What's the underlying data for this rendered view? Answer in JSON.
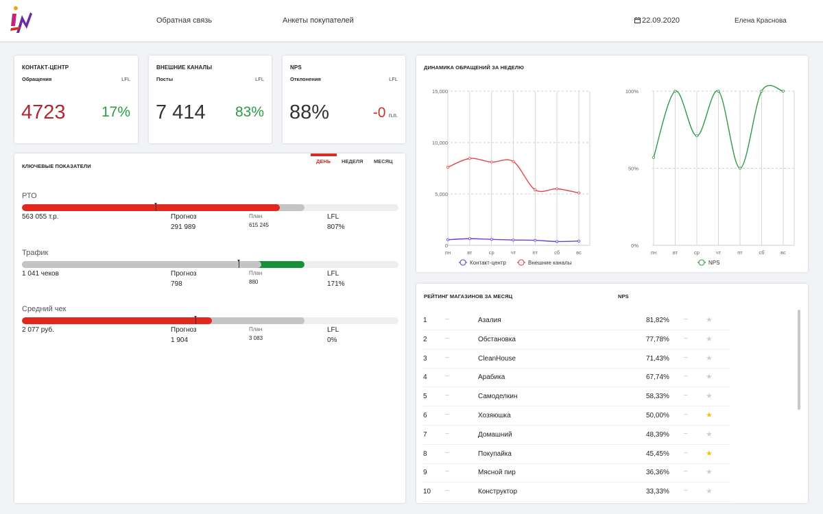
{
  "header": {
    "nav": [
      "Обратная связь",
      "Анкеты покупателей"
    ],
    "date": "22.09.2020",
    "user": "Елена Краснова"
  },
  "kpis": [
    {
      "title": "КОНТАКТ-ЦЕНТР",
      "subtitle": "Обращения",
      "lfl_label": "LFL",
      "value": "4723",
      "pct": "17%",
      "value_color": "#b3262e",
      "pct_color": "#2a9a43"
    },
    {
      "title": "ВНЕШНИЕ КАНАЛЫ",
      "subtitle": "Посты",
      "lfl_label": "LFL",
      "value": "7 414",
      "pct": "83%",
      "value_color": "#333333",
      "pct_color": "#2a9a43"
    },
    {
      "title": "NPS",
      "subtitle": "Отклонения",
      "lfl_label": "LFL",
      "value": "88%",
      "pct": "-0",
      "pct_unit": "п.п.",
      "value_color": "#333333",
      "pct_color": "#d62e24"
    }
  ],
  "key_metrics": {
    "title": "КЛЮЧЕВЫЕ ПОКАЗАТЕЛИ",
    "tabs": [
      "ДЕНЬ",
      "НЕДЕЛЯ",
      "МЕСЯЦ"
    ],
    "active_tab": 0,
    "items": [
      {
        "name": "РТО",
        "value": "563 055 т.р.",
        "forecast_label": "Прогноз",
        "forecast": "291 989",
        "plan_label": "План",
        "plan": "615 245",
        "lfl_label": "LFL",
        "lfl": "807%",
        "progress": 0.685,
        "progress_color": "#e0281e",
        "forecast_share": 0.75,
        "forecast_color": "#c4c4c4",
        "marker": 0.355
      },
      {
        "name": "Трафик",
        "value": "1 041 чеков",
        "forecast_label": "Прогноз",
        "forecast": "798",
        "plan_label": "План",
        "plan": "880",
        "lfl_label": "LFL",
        "lfl": "171%",
        "progress": 0.75,
        "progress_color": "#16903a",
        "forecast_share": 0.635,
        "forecast_color": "#c4c4c4",
        "marker": 0.575
      },
      {
        "name": "Средний чек",
        "value": "2 077 руб.",
        "forecast_label": "Прогноз",
        "forecast": "1 904",
        "plan_label": "План",
        "plan": "3 083",
        "lfl_label": "LFL",
        "lfl": "0%",
        "progress": 0.505,
        "progress_color": "#e0281e",
        "forecast_share": 0.75,
        "forecast_color": "#c4c4c4",
        "marker": 0.46
      }
    ]
  },
  "dynamics": {
    "title": "ДИНАМИКА ОБРАЩЕНИЙ ЗА НЕДЕЛЮ"
  },
  "chart_data": [
    {
      "type": "line",
      "title": "ДИНАМИКА ОБРАЩЕНИЙ ЗА НЕДЕЛЮ",
      "categories": [
        "пн",
        "вт",
        "ср",
        "чт",
        "пт",
        "сб",
        "вс"
      ],
      "yticks": [
        "0",
        "5,000",
        "10,000",
        "15,000"
      ],
      "ylim": [
        0,
        15000
      ],
      "series": [
        {
          "name": "Контакт-центр",
          "color": "#6a3fd6",
          "values": [
            550,
            650,
            580,
            520,
            490,
            370,
            420
          ]
        },
        {
          "name": "Внешние каналы",
          "color": "#e04848",
          "values": [
            7600,
            8450,
            8100,
            8150,
            5400,
            5500,
            5100
          ]
        }
      ]
    },
    {
      "type": "line",
      "categories": [
        "пн",
        "вт",
        "ср",
        "чт",
        "пт",
        "сб",
        "вс"
      ],
      "yticks": [
        "0%",
        "50%",
        "100%"
      ],
      "ylim": [
        0,
        100
      ],
      "series": [
        {
          "name": "NPS",
          "color": "#2a9a43",
          "values": [
            57,
            100,
            71,
            100,
            50,
            100,
            100
          ]
        }
      ]
    }
  ],
  "rating": {
    "title": "РЕЙТИНГ МАГАЗИНОВ ЗА МЕСЯЦ",
    "nps_header": "NPS",
    "rows": [
      {
        "rank": "1",
        "name": "Азалия",
        "value": "81,82%",
        "dash": "–",
        "star": "★",
        "highlight": false
      },
      {
        "rank": "2",
        "name": "Обстановка",
        "value": "77,78%",
        "dash": "–",
        "star": "★",
        "highlight": false
      },
      {
        "rank": "3",
        "name": "CleanHouse",
        "value": "71,43%",
        "dash": "–",
        "star": "★",
        "highlight": false
      },
      {
        "rank": "4",
        "name": "Арабика",
        "value": "67,74%",
        "dash": "–",
        "star": "★",
        "highlight": false
      },
      {
        "rank": "5",
        "name": "Самоделкин",
        "value": "58,33%",
        "dash": "–",
        "star": "★",
        "highlight": false
      },
      {
        "rank": "6",
        "name": "Хозяюшка",
        "value": "50,00%",
        "dash": "–",
        "star": "★",
        "highlight": true
      },
      {
        "rank": "7",
        "name": "Домашний",
        "value": "48,39%",
        "dash": "–",
        "star": "★",
        "highlight": false
      },
      {
        "rank": "8",
        "name": "Покупайка",
        "value": "45,45%",
        "dash": "–",
        "star": "★",
        "highlight": true
      },
      {
        "rank": "9",
        "name": "Мясной пир",
        "value": "36,36%",
        "dash": "–",
        "star": "★",
        "highlight": false
      },
      {
        "rank": "10",
        "name": "Конструктор",
        "value": "33,33%",
        "dash": "–",
        "star": "★",
        "highlight": false
      }
    ]
  }
}
